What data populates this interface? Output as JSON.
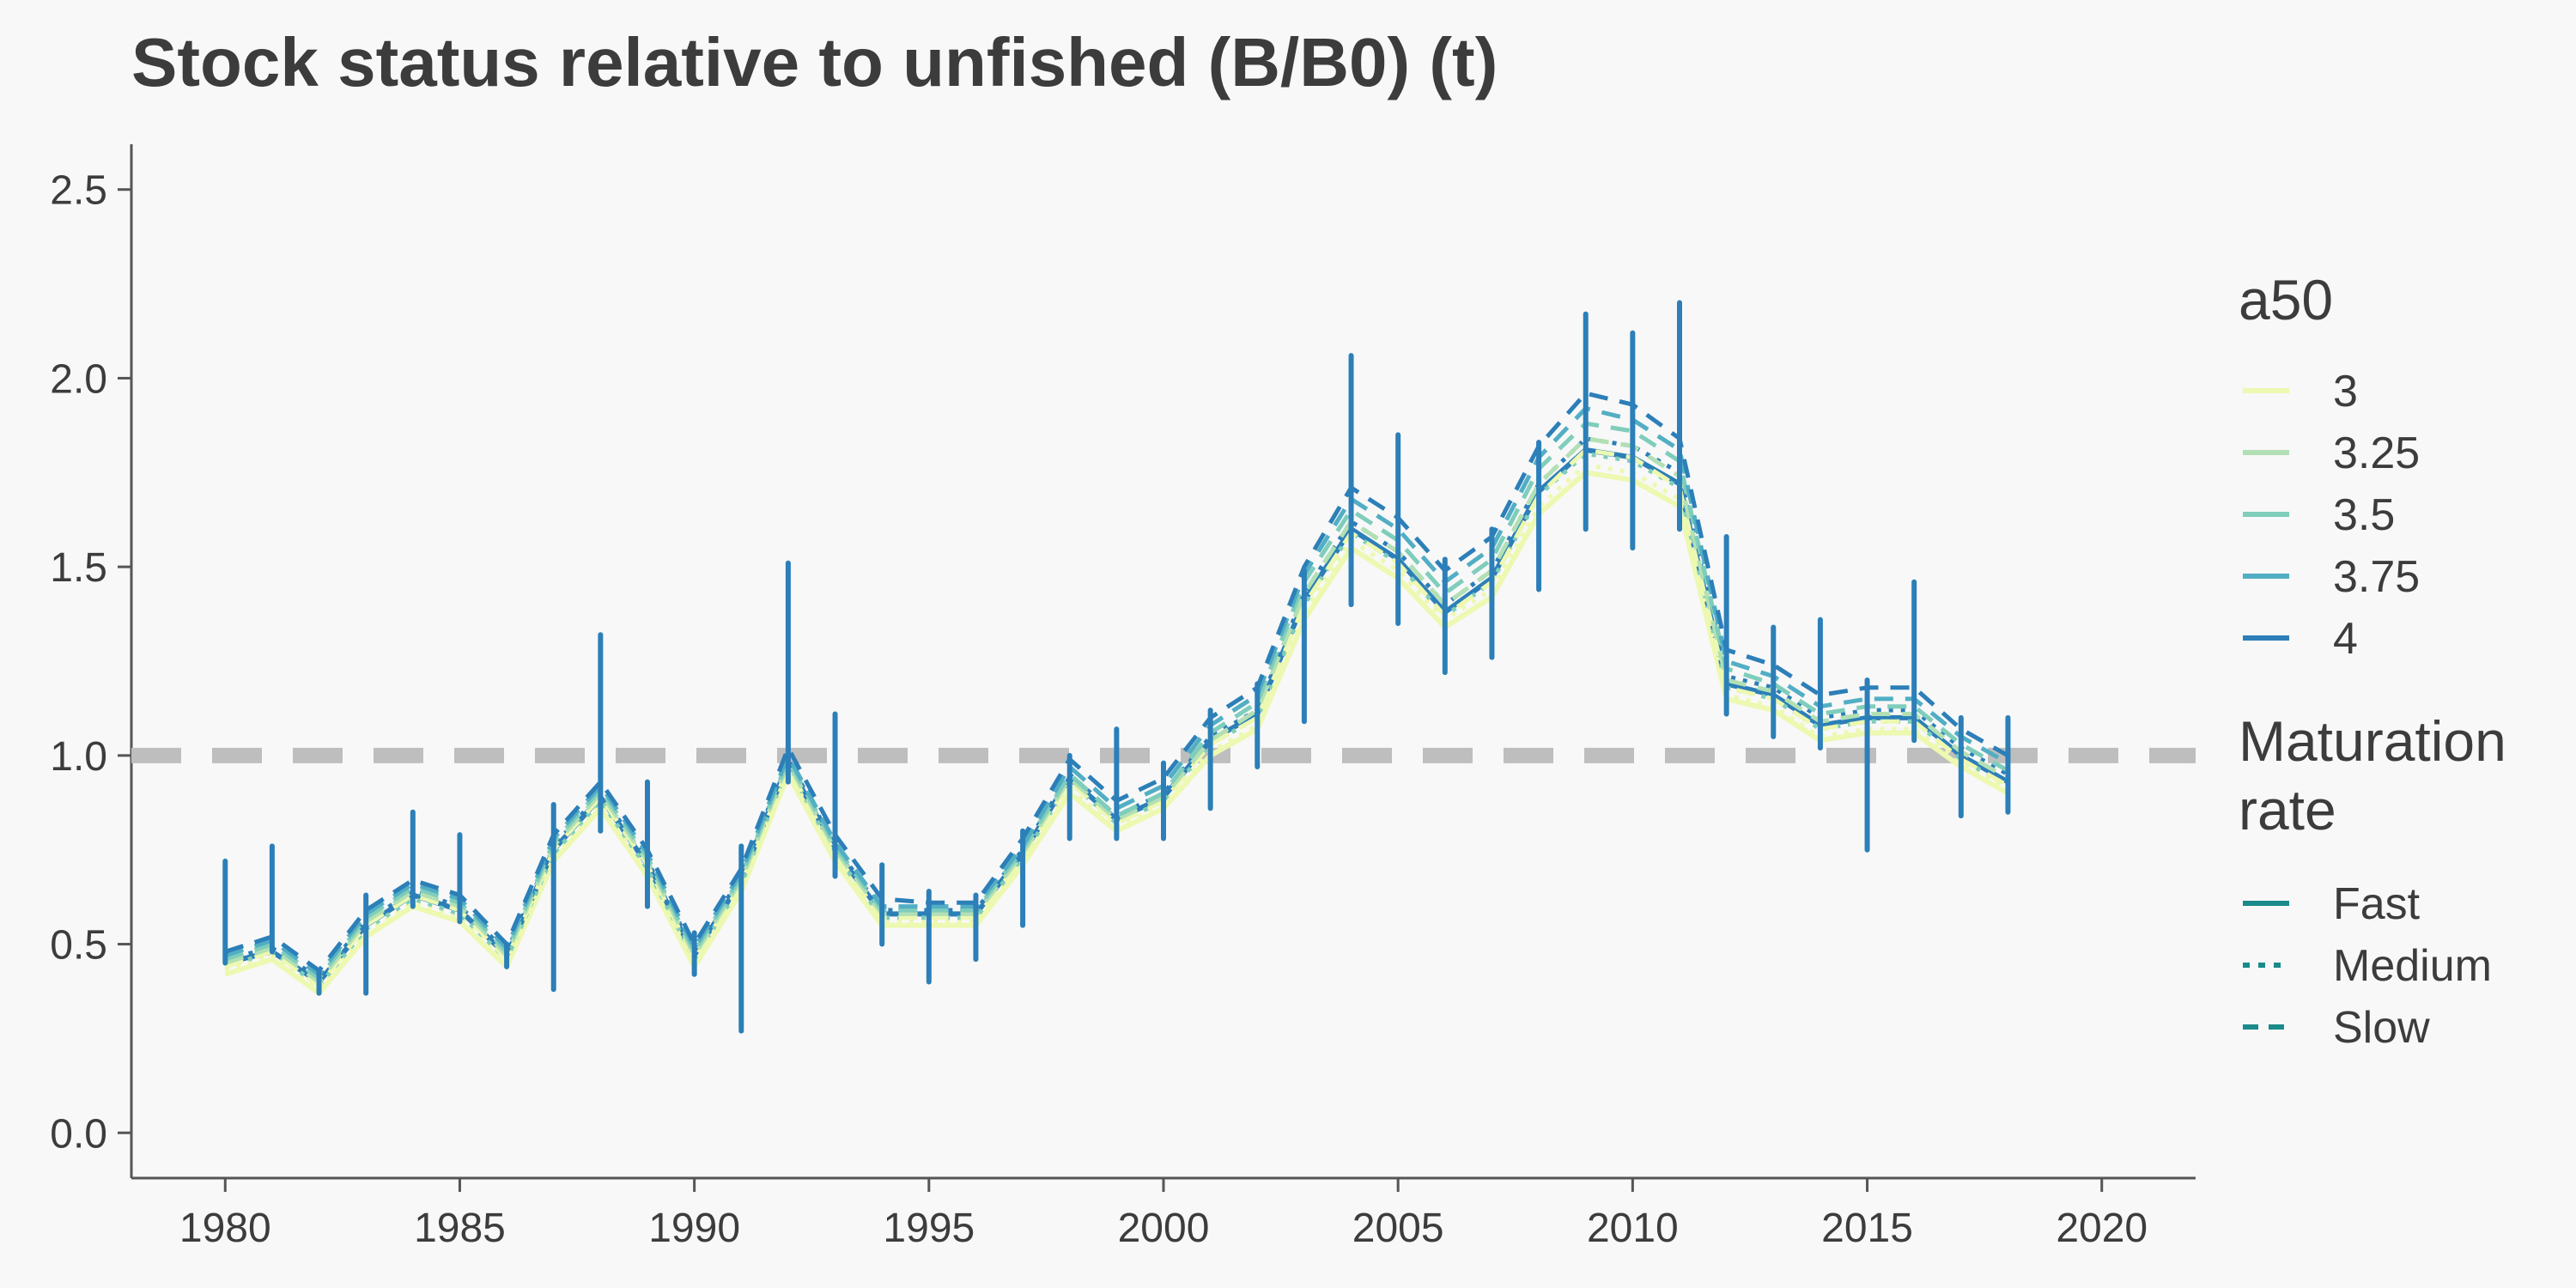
{
  "chart_data": {
    "type": "line",
    "title": "Stock status relative to unfished (B/B0) (t)",
    "xlabel": "",
    "ylabel": "",
    "xlim": [
      1978,
      2022
    ],
    "ylim": [
      -0.12,
      2.62
    ],
    "x_ticks": [
      1980,
      1985,
      1990,
      1995,
      2000,
      2005,
      2010,
      2015,
      2020
    ],
    "y_ticks": [
      0.0,
      0.5,
      1.0,
      1.5,
      2.0,
      2.5
    ],
    "y_tick_labels": [
      "0.0",
      "0.5",
      "1.0",
      "1.5",
      "2.0",
      "2.5"
    ],
    "grid": false,
    "reference_line": {
      "y": 1.0,
      "color": "#bebebe",
      "style": "dashed"
    },
    "legend": {
      "placement": "right",
      "color_title": "a50",
      "color_entries": [
        {
          "label": "3",
          "color": "#edf8b1"
        },
        {
          "label": "3.25",
          "color": "#b2e0b4"
        },
        {
          "label": "3.5",
          "color": "#7fcdbb"
        },
        {
          "label": "3.75",
          "color": "#52aec4"
        },
        {
          "label": "4",
          "color": "#2c7fb8"
        }
      ],
      "linetype_title_lines": [
        "Maturation",
        "rate"
      ],
      "linetype_entries": [
        {
          "label": "Fast",
          "dash": "solid"
        },
        {
          "label": "Medium",
          "dash": "dotted"
        },
        {
          "label": "Slow",
          "dash": "dashed"
        }
      ],
      "linetype_color": "#1b8a8a"
    },
    "x": [
      1980,
      1981,
      1982,
      1983,
      1984,
      1985,
      1986,
      1987,
      1988,
      1989,
      1990,
      1991,
      1992,
      1993,
      1994,
      1995,
      1996,
      1997,
      1998,
      1999,
      2000,
      2001,
      2002,
      2003,
      2004,
      2005,
      2006,
      2007,
      2008,
      2009,
      2010,
      2011,
      2012,
      2013,
      2014,
      2015,
      2016,
      2017,
      2018
    ],
    "series": [
      {
        "a50": "3",
        "rate": "Fast",
        "values": [
          0.42,
          0.46,
          0.37,
          0.52,
          0.6,
          0.56,
          0.44,
          0.72,
          0.86,
          0.68,
          0.44,
          0.64,
          0.95,
          0.72,
          0.55,
          0.55,
          0.55,
          0.71,
          0.9,
          0.8,
          0.86,
          1.0,
          1.07,
          1.36,
          1.55,
          1.47,
          1.34,
          1.42,
          1.64,
          1.75,
          1.73,
          1.66,
          1.15,
          1.12,
          1.04,
          1.06,
          1.06,
          0.97,
          0.9
        ]
      },
      {
        "a50": "4",
        "rate": "Fast",
        "values": [
          0.45,
          0.48,
          0.4,
          0.55,
          0.63,
          0.59,
          0.47,
          0.75,
          0.89,
          0.71,
          0.47,
          0.67,
          0.98,
          0.75,
          0.58,
          0.58,
          0.58,
          0.74,
          0.94,
          0.83,
          0.89,
          1.04,
          1.11,
          1.41,
          1.6,
          1.52,
          1.38,
          1.47,
          1.7,
          1.81,
          1.79,
          1.72,
          1.19,
          1.16,
          1.08,
          1.1,
          1.1,
          1.0,
          0.93
        ]
      },
      {
        "a50": "3",
        "rate": "Medium",
        "values": [
          0.43,
          0.47,
          0.38,
          0.53,
          0.61,
          0.57,
          0.45,
          0.73,
          0.87,
          0.69,
          0.45,
          0.65,
          0.96,
          0.73,
          0.56,
          0.56,
          0.56,
          0.72,
          0.91,
          0.81,
          0.87,
          1.01,
          1.08,
          1.38,
          1.57,
          1.49,
          1.36,
          1.44,
          1.66,
          1.77,
          1.75,
          1.68,
          1.16,
          1.13,
          1.05,
          1.07,
          1.07,
          0.98,
          0.91
        ]
      },
      {
        "a50": "3.5",
        "rate": "Medium",
        "values": [
          0.44,
          0.48,
          0.39,
          0.54,
          0.62,
          0.58,
          0.46,
          0.74,
          0.88,
          0.7,
          0.46,
          0.66,
          0.97,
          0.74,
          0.57,
          0.57,
          0.57,
          0.73,
          0.93,
          0.82,
          0.88,
          1.03,
          1.1,
          1.4,
          1.59,
          1.51,
          1.37,
          1.46,
          1.69,
          1.8,
          1.78,
          1.71,
          1.18,
          1.15,
          1.07,
          1.09,
          1.09,
          0.99,
          0.92
        ]
      },
      {
        "a50": "4",
        "rate": "Medium",
        "values": [
          0.46,
          0.49,
          0.41,
          0.56,
          0.64,
          0.6,
          0.48,
          0.76,
          0.9,
          0.72,
          0.48,
          0.68,
          0.99,
          0.76,
          0.59,
          0.59,
          0.59,
          0.75,
          0.95,
          0.84,
          0.9,
          1.05,
          1.12,
          1.43,
          1.62,
          1.54,
          1.4,
          1.49,
          1.72,
          1.84,
          1.82,
          1.75,
          1.21,
          1.18,
          1.1,
          1.12,
          1.12,
          1.02,
          0.95
        ]
      },
      {
        "a50": "3",
        "rate": "Slow",
        "values": [
          0.44,
          0.48,
          0.39,
          0.55,
          0.63,
          0.59,
          0.46,
          0.75,
          0.89,
          0.71,
          0.46,
          0.66,
          0.97,
          0.74,
          0.57,
          0.57,
          0.57,
          0.73,
          0.93,
          0.82,
          0.88,
          1.03,
          1.1,
          1.4,
          1.59,
          1.51,
          1.37,
          1.46,
          1.69,
          1.81,
          1.79,
          1.71,
          1.18,
          1.15,
          1.07,
          1.09,
          1.09,
          0.99,
          0.92
        ]
      },
      {
        "a50": "3.25",
        "rate": "Slow",
        "values": [
          0.45,
          0.49,
          0.4,
          0.56,
          0.64,
          0.6,
          0.47,
          0.76,
          0.9,
          0.72,
          0.47,
          0.67,
          0.98,
          0.75,
          0.58,
          0.58,
          0.58,
          0.74,
          0.94,
          0.83,
          0.89,
          1.04,
          1.12,
          1.43,
          1.62,
          1.54,
          1.4,
          1.49,
          1.72,
          1.84,
          1.82,
          1.74,
          1.2,
          1.17,
          1.09,
          1.11,
          1.11,
          1.01,
          0.94
        ]
      },
      {
        "a50": "3.5",
        "rate": "Slow",
        "values": [
          0.46,
          0.5,
          0.41,
          0.57,
          0.65,
          0.61,
          0.48,
          0.77,
          0.91,
          0.73,
          0.48,
          0.68,
          0.99,
          0.76,
          0.59,
          0.59,
          0.59,
          0.75,
          0.95,
          0.84,
          0.9,
          1.06,
          1.14,
          1.46,
          1.65,
          1.57,
          1.43,
          1.52,
          1.76,
          1.88,
          1.86,
          1.78,
          1.23,
          1.19,
          1.11,
          1.13,
          1.13,
          1.03,
          0.96
        ]
      },
      {
        "a50": "3.75",
        "rate": "Slow",
        "values": [
          0.47,
          0.51,
          0.42,
          0.58,
          0.66,
          0.62,
          0.49,
          0.78,
          0.92,
          0.74,
          0.49,
          0.69,
          1.0,
          0.77,
          0.6,
          0.6,
          0.6,
          0.76,
          0.97,
          0.86,
          0.92,
          1.08,
          1.16,
          1.48,
          1.68,
          1.6,
          1.46,
          1.55,
          1.79,
          1.92,
          1.89,
          1.81,
          1.25,
          1.21,
          1.13,
          1.15,
          1.15,
          1.05,
          0.98
        ]
      },
      {
        "a50": "4",
        "rate": "Slow",
        "values": [
          0.48,
          0.52,
          0.43,
          0.59,
          0.67,
          0.63,
          0.5,
          0.79,
          0.93,
          0.75,
          0.5,
          0.7,
          1.02,
          0.79,
          0.62,
          0.61,
          0.61,
          0.78,
          0.99,
          0.88,
          0.94,
          1.1,
          1.18,
          1.5,
          1.71,
          1.63,
          1.49,
          1.58,
          1.82,
          1.96,
          1.93,
          1.84,
          1.28,
          1.24,
          1.16,
          1.18,
          1.18,
          1.07,
          1.0
        ]
      }
    ],
    "uncertainty_bars": {
      "color": "#2c7fb8",
      "x": [
        1980,
        1981,
        1982,
        1983,
        1984,
        1985,
        1986,
        1987,
        1988,
        1989,
        1990,
        1991,
        1992,
        1993,
        1994,
        1995,
        1996,
        1997,
        1998,
        1999,
        2000,
        2001,
        2002,
        2003,
        2004,
        2005,
        2006,
        2007,
        2008,
        2009,
        2010,
        2011,
        2012,
        2013,
        2014,
        2015,
        2016,
        2017,
        2018
      ],
      "low": [
        0.45,
        0.48,
        0.37,
        0.37,
        0.6,
        0.56,
        0.44,
        0.38,
        0.8,
        0.6,
        0.42,
        0.27,
        0.93,
        0.68,
        0.5,
        0.4,
        0.46,
        0.55,
        0.78,
        0.78,
        0.78,
        0.86,
        0.97,
        1.09,
        1.4,
        1.35,
        1.22,
        1.26,
        1.44,
        1.6,
        1.55,
        1.6,
        1.11,
        1.05,
        1.02,
        0.75,
        1.04,
        0.84,
        0.85
      ],
      "high": [
        0.72,
        0.76,
        0.43,
        0.63,
        0.85,
        0.79,
        0.5,
        0.87,
        1.32,
        0.93,
        0.53,
        0.76,
        1.51,
        1.11,
        0.71,
        0.64,
        0.63,
        0.8,
        1.0,
        1.07,
        0.98,
        1.12,
        1.19,
        1.49,
        2.06,
        1.85,
        1.52,
        1.6,
        1.83,
        2.17,
        2.12,
        2.2,
        1.58,
        1.34,
        1.36,
        1.2,
        1.46,
        1.1,
        1.1
      ]
    }
  }
}
